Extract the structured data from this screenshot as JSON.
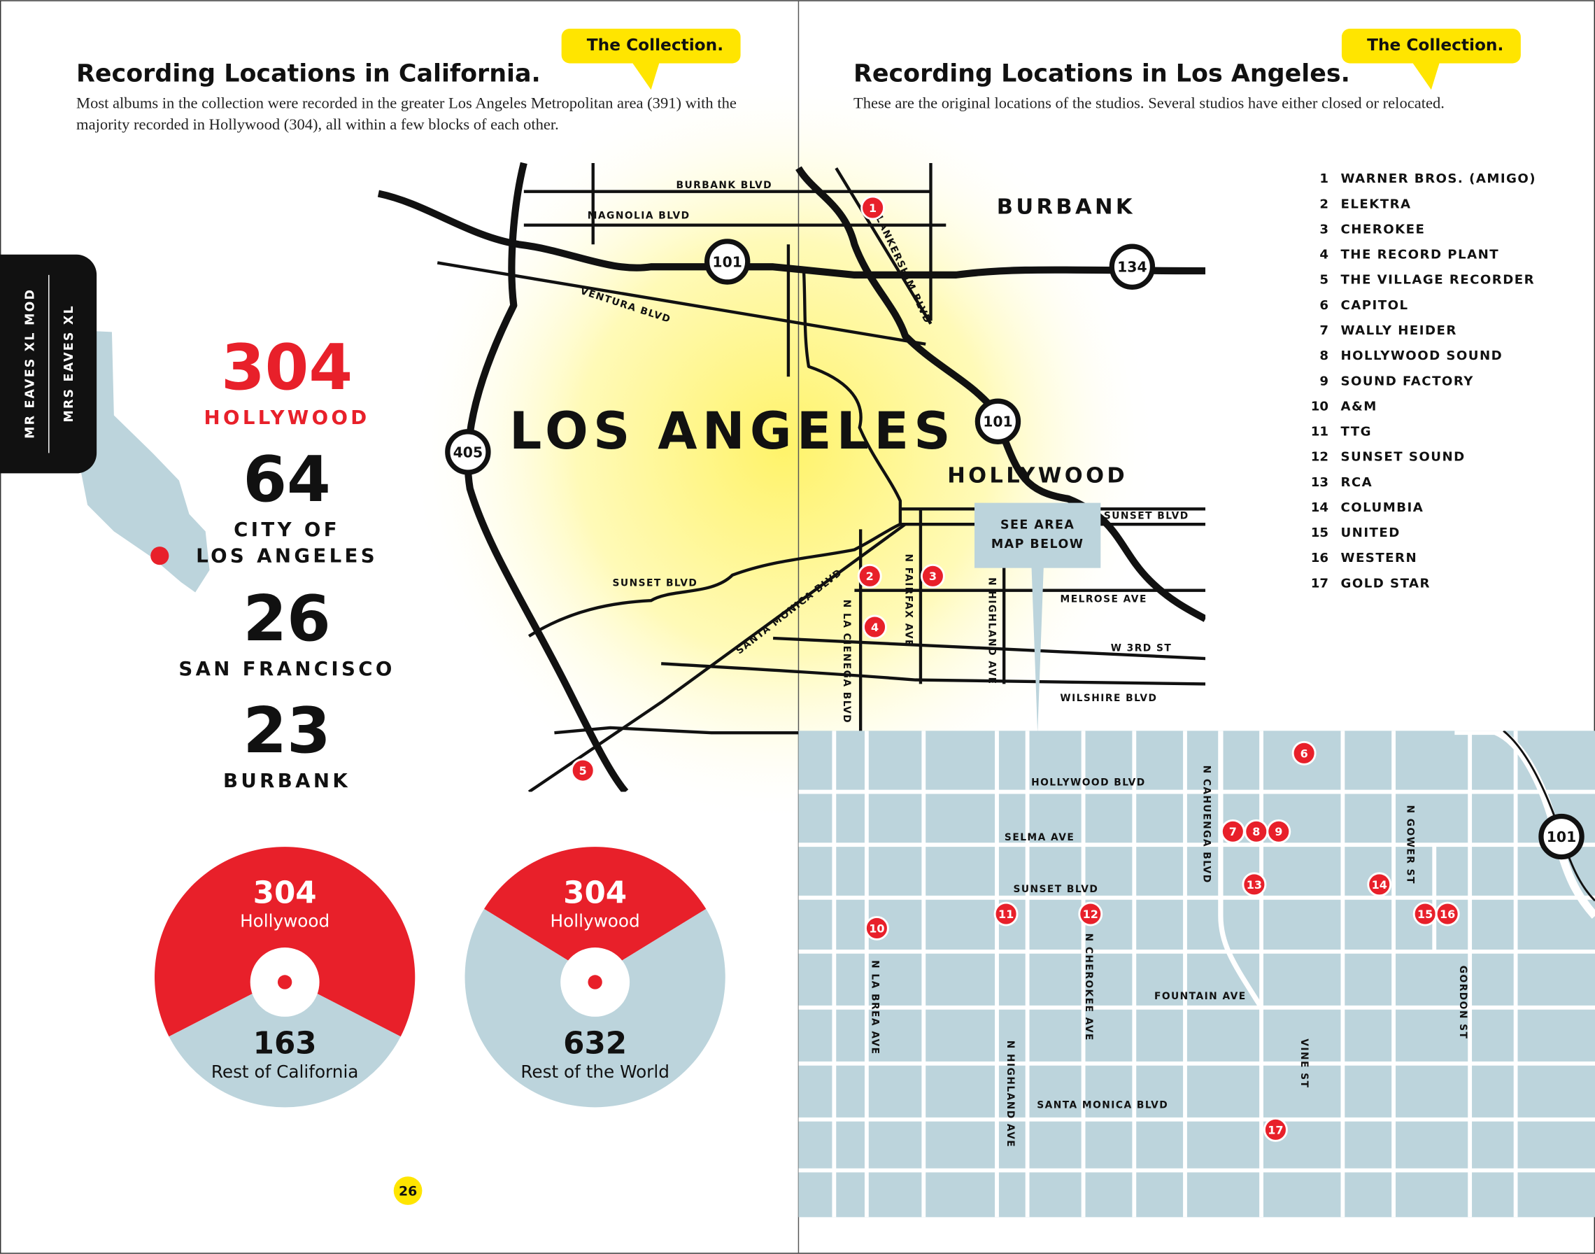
{
  "left": {
    "badge": "The Collection.",
    "title": "Recording Locations in California.",
    "intro": "Most albums in the collection were recorded in the greater Los Angeles Metropolitan area (391) with the majority recorded in Hollywood (304), all within a few blocks of each other.",
    "side_tab": [
      "MR EAVES XL MOD",
      "MRS EAVES XL"
    ],
    "stats": [
      {
        "value": 304,
        "label": [
          "HOLLYWOOD"
        ],
        "color": "#e8202a"
      },
      {
        "value": 64,
        "label": [
          "CITY OF",
          "LOS ANGELES"
        ],
        "color": "#111111"
      },
      {
        "value": 26,
        "label": [
          "SAN FRANCISCO"
        ],
        "color": "#111111"
      },
      {
        "value": 23,
        "label": [
          "BURBANK"
        ],
        "color": "#111111"
      }
    ],
    "page_number": 26
  },
  "pies": [
    {
      "values": [
        304,
        163
      ],
      "labels": [
        "Hollywood",
        "Rest of California"
      ],
      "colors": [
        "#e8202a",
        "#bcd4dc"
      ]
    },
    {
      "values": [
        304,
        632
      ],
      "labels": [
        "Hollywood",
        "Rest of the World"
      ],
      "colors": [
        "#e8202a",
        "#bcd4dc"
      ]
    }
  ],
  "right": {
    "badge": "The Collection.",
    "title": "Recording Locations in Los Angeles.",
    "intro": "These are the original locations of the studios. Several studios have either closed or relocated.",
    "studios": [
      {
        "number": 1,
        "name": "WARNER BROS. (AMIGO)"
      },
      {
        "number": 2,
        "name": "ELEKTRA"
      },
      {
        "number": 3,
        "name": "CHEROKEE"
      },
      {
        "number": 4,
        "name": "THE RECORD PLANT"
      },
      {
        "number": 5,
        "name": "THE VILLAGE RECORDER"
      },
      {
        "number": 6,
        "name": "CAPITOL"
      },
      {
        "number": 7,
        "name": "WALLY HEIDER"
      },
      {
        "number": 8,
        "name": "HOLLYWOOD SOUND"
      },
      {
        "number": 9,
        "name": "SOUND FACTORY"
      },
      {
        "number": 10,
        "name": "A&M"
      },
      {
        "number": 11,
        "name": "TTG"
      },
      {
        "number": 12,
        "name": "SUNSET SOUND"
      },
      {
        "number": 13,
        "name": "RCA"
      },
      {
        "number": 14,
        "name": "COLUMBIA"
      },
      {
        "number": 15,
        "name": "UNITED"
      },
      {
        "number": 16,
        "name": "WESTERN"
      },
      {
        "number": 17,
        "name": "GOLD STAR"
      }
    ]
  },
  "area_map": {
    "places": [
      "LOS ANGELES",
      "BURBANK",
      "HOLLYWOOD"
    ],
    "callout": [
      "SEE AREA",
      "MAP BELOW"
    ],
    "shields": [
      "405",
      "101",
      "101",
      "134"
    ],
    "streets": [
      "BURBANK BLVD",
      "MAGNOLIA BLVD",
      "VENTURA BLVD",
      "SUNSET BLVD",
      "SANTA MONICA BLVD",
      "N LA CIENEGA BLVD",
      "N FAIRFAX AVE",
      "N HIGHLAND AVE",
      "SUNSET BLVD",
      "MELROSE AVE",
      "W 3RD ST",
      "WILSHIRE BLVD",
      "LANKERSHIM BLVD"
    ]
  },
  "detail_map": {
    "shield": "101",
    "streets": [
      "HOLLYWOOD BLVD",
      "SELMA AVE",
      "SUNSET BLVD",
      "FOUNTAIN AVE",
      "SANTA MONICA BLVD",
      "N LA BREA AVE",
      "N HIGHLAND AVE",
      "N CHEROKEE AVE",
      "N CAHUENGA BLVD",
      "VINE ST",
      "N GOWER ST",
      "GORDON ST"
    ]
  }
}
